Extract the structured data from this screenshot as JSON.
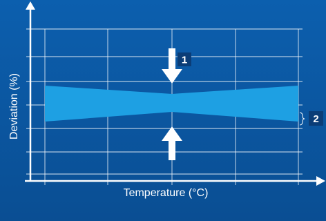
{
  "colors": {
    "background_top": "#0c5fae",
    "background_bottom": "#0a4e93",
    "grid": "#ffffff",
    "axis": "#ffffff",
    "band_fill": "#1ea0e3",
    "arrow": "#ffffff",
    "badge_fill": "#0b3d77",
    "text": "#ffffff"
  },
  "axes": {
    "x_label": "Temperature (°C)",
    "y_label": "Deviation (%)",
    "grid": true
  },
  "band": {
    "description_shape": "hourglass tolerance band narrowing toward the center"
  },
  "markers": [
    {
      "label": "1",
      "meaning": "arrows pointing to the narrowest point of the band"
    },
    {
      "label": "2",
      "meaning": "bracket marking the band width at the right edge"
    }
  ],
  "icons": [
    "arrow-down-icon",
    "arrow-up-icon",
    "brace-icon"
  ]
}
